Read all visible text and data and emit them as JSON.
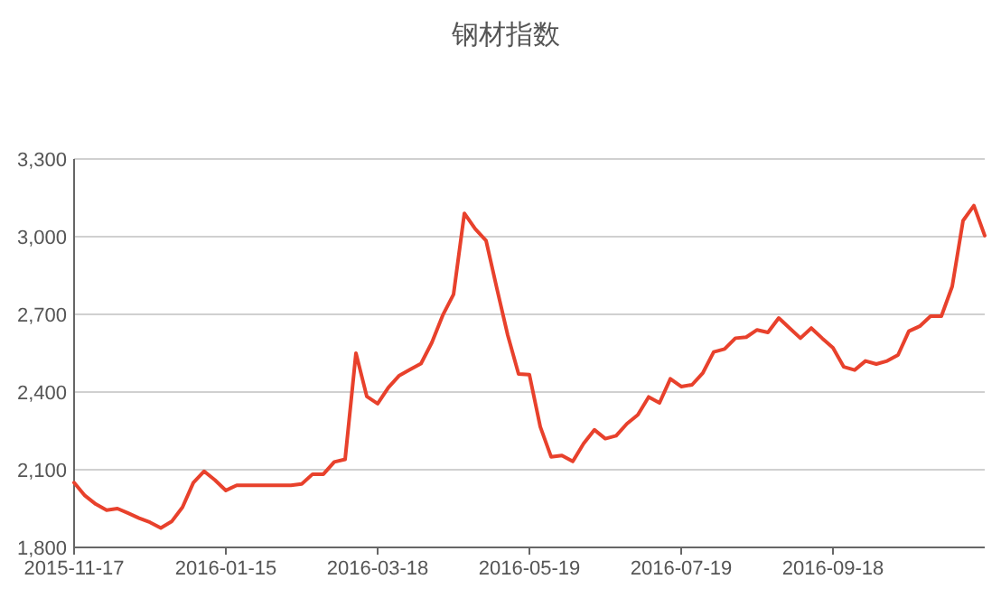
{
  "chart_data": {
    "type": "line",
    "title": "钢材指数",
    "categories": [
      "2015-11-17",
      null,
      null,
      null,
      null,
      null,
      null,
      null,
      null,
      null,
      null,
      null,
      null,
      null,
      "2016-01-15",
      null,
      null,
      null,
      null,
      null,
      null,
      null,
      null,
      null,
      null,
      null,
      null,
      null,
      "2016-03-18",
      null,
      null,
      null,
      null,
      null,
      null,
      null,
      null,
      null,
      null,
      null,
      null,
      null,
      "2016-05-19",
      null,
      null,
      null,
      null,
      null,
      null,
      null,
      null,
      null,
      null,
      null,
      null,
      null,
      "2016-07-19",
      null,
      null,
      null,
      null,
      null,
      null,
      null,
      null,
      null,
      null,
      null,
      null,
      null,
      "2016-09-18",
      null,
      null,
      null,
      null,
      null,
      null,
      null,
      null,
      null,
      null,
      null,
      null,
      null,
      null
    ],
    "series": [
      {
        "color": "#e8412c",
        "values": [
          2050,
          2000,
          1967,
          1944,
          1950,
          1932,
          1913,
          1897,
          1875,
          1900,
          1955,
          2050,
          2094,
          2060,
          2020,
          2040,
          2040,
          2040,
          2040,
          2040,
          2040,
          2045,
          2083,
          2083,
          2130,
          2140,
          2550,
          2383,
          2355,
          2418,
          2464,
          2487,
          2510,
          2591,
          2696,
          2777,
          3090,
          3030,
          2985,
          2800,
          2620,
          2470,
          2467,
          2266,
          2150,
          2155,
          2132,
          2201,
          2254,
          2220,
          2231,
          2278,
          2312,
          2381,
          2358,
          2451,
          2421,
          2428,
          2474,
          2555,
          2566,
          2608,
          2612,
          2640,
          2630,
          2686,
          2647,
          2608,
          2647,
          2608,
          2571,
          2497,
          2485,
          2520,
          2508,
          2520,
          2543,
          2635,
          2654,
          2693,
          2693,
          2808,
          3062,
          3120,
          3004
        ]
      }
    ],
    "ylim": [
      1800,
      3300
    ],
    "yticks": [
      {
        "value": 1800,
        "label": "1,800"
      },
      {
        "value": 2100,
        "label": "2,100"
      },
      {
        "value": 2400,
        "label": "2,400"
      },
      {
        "value": 2700,
        "label": "2,700"
      },
      {
        "value": 3000,
        "label": "3,000"
      },
      {
        "value": 3300,
        "label": "3,300"
      }
    ],
    "grid": "y",
    "line_style": "solid"
  }
}
